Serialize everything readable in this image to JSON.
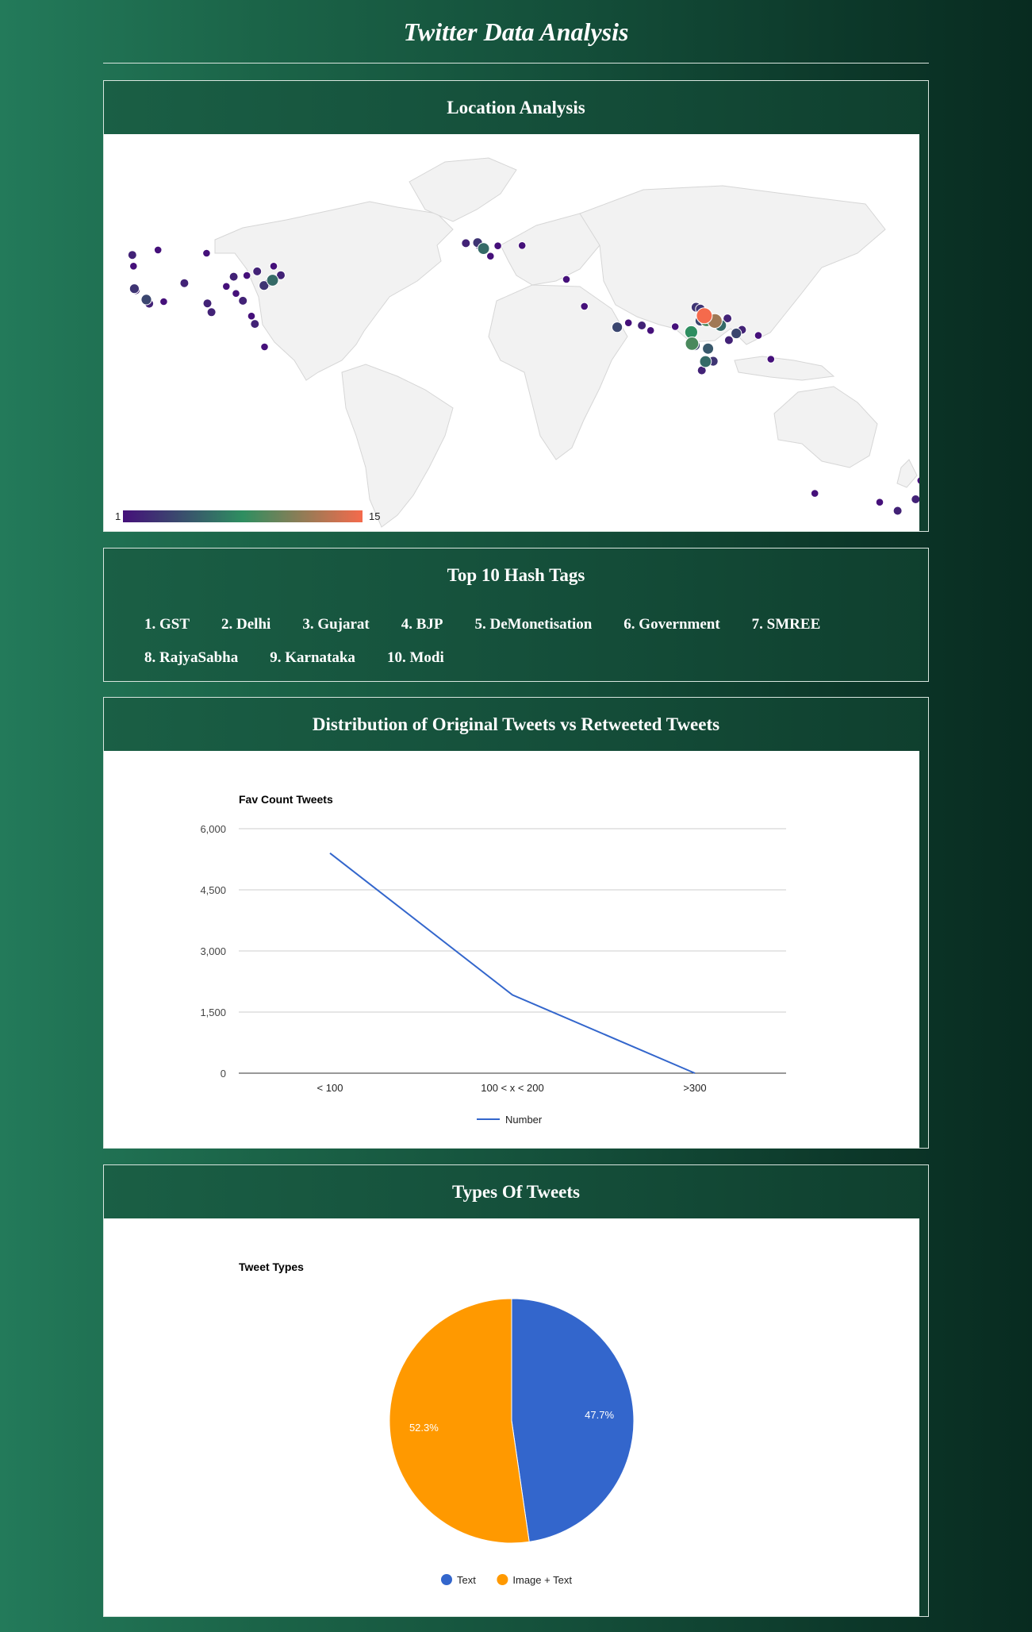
{
  "header": {
    "title": "Twitter Data Analysis"
  },
  "location": {
    "title": "Location Analysis",
    "colorbar": {
      "min_label": "1",
      "max_label": "15",
      "colors": [
        "#45107a",
        "#2e8e60",
        "#f56a4c"
      ]
    },
    "land_color": "#f2f2f2",
    "points": [
      {
        "lon": -149.9,
        "lat": 61.2,
        "count": 1
      },
      {
        "lon": -114.1,
        "lat": 51.0,
        "count": 1
      },
      {
        "lon": -123.1,
        "lat": 49.3,
        "count": 2
      },
      {
        "lon": -122.7,
        "lat": 45.5,
        "count": 1
      },
      {
        "lon": -97.1,
        "lat": 49.9,
        "count": 1
      },
      {
        "lon": -122.4,
        "lat": 37.8,
        "count": 3
      },
      {
        "lon": -121.9,
        "lat": 37.3,
        "count": 2
      },
      {
        "lon": -118.2,
        "lat": 34.1,
        "count": 4
      },
      {
        "lon": -117.2,
        "lat": 32.7,
        "count": 2
      },
      {
        "lon": -112.1,
        "lat": 33.4,
        "count": 1
      },
      {
        "lon": -104.9,
        "lat": 39.7,
        "count": 2
      },
      {
        "lon": -96.8,
        "lat": 32.8,
        "count": 2
      },
      {
        "lon": -95.4,
        "lat": 29.8,
        "count": 2
      },
      {
        "lon": -90.2,
        "lat": 38.6,
        "count": 1
      },
      {
        "lon": -87.6,
        "lat": 41.9,
        "count": 2
      },
      {
        "lon": -86.8,
        "lat": 36.2,
        "count": 1
      },
      {
        "lon": -84.4,
        "lat": 33.7,
        "count": 2
      },
      {
        "lon": -83.0,
        "lat": 42.3,
        "count": 1
      },
      {
        "lon": -81.4,
        "lat": 28.5,
        "count": 1
      },
      {
        "lon": -80.2,
        "lat": 25.8,
        "count": 2
      },
      {
        "lon": -79.4,
        "lat": 43.7,
        "count": 2
      },
      {
        "lon": -77.0,
        "lat": 38.9,
        "count": 3
      },
      {
        "lon": -75.2,
        "lat": 40.0,
        "count": 2
      },
      {
        "lon": -74.0,
        "lat": 40.7,
        "count": 6
      },
      {
        "lon": -71.1,
        "lat": 42.4,
        "count": 2
      },
      {
        "lon": -73.6,
        "lat": 45.5,
        "count": 1
      },
      {
        "lon": -76.8,
        "lat": 18.0,
        "count": 1
      },
      {
        "lon": -157.9,
        "lat": 21.3,
        "count": 2
      },
      {
        "lon": -6.3,
        "lat": 53.3,
        "count": 2
      },
      {
        "lon": -2.2,
        "lat": 53.5,
        "count": 3
      },
      {
        "lon": -0.1,
        "lat": 51.5,
        "count": 6
      },
      {
        "lon": -1.9,
        "lat": 52.5,
        "count": 1
      },
      {
        "lon": 4.9,
        "lat": 52.4,
        "count": 1
      },
      {
        "lon": 13.4,
        "lat": 52.5,
        "count": 1
      },
      {
        "lon": 2.3,
        "lat": 48.9,
        "count": 1
      },
      {
        "lon": 28.9,
        "lat": 41.0,
        "count": 1
      },
      {
        "lon": 35.2,
        "lat": 31.8,
        "count": 1
      },
      {
        "lon": 46.7,
        "lat": 24.7,
        "count": 4
      },
      {
        "lon": 50.6,
        "lat": 26.2,
        "count": 1
      },
      {
        "lon": 55.3,
        "lat": 25.3,
        "count": 2
      },
      {
        "lon": 58.4,
        "lat": 23.6,
        "count": 1
      },
      {
        "lon": 67.0,
        "lat": 24.9,
        "count": 1
      },
      {
        "lon": 74.3,
        "lat": 31.5,
        "count": 3
      },
      {
        "lon": 75.8,
        "lat": 30.9,
        "count": 3
      },
      {
        "lon": 77.2,
        "lat": 28.6,
        "count": 15
      },
      {
        "lon": 78.0,
        "lat": 27.2,
        "count": 9
      },
      {
        "lon": 80.9,
        "lat": 26.8,
        "count": 12
      },
      {
        "lon": 82.9,
        "lat": 25.3,
        "count": 6
      },
      {
        "lon": 75.8,
        "lat": 26.9,
        "count": 4
      },
      {
        "lon": 72.6,
        "lat": 23.0,
        "count": 8
      },
      {
        "lon": 72.9,
        "lat": 19.1,
        "count": 9
      },
      {
        "lon": 73.9,
        "lat": 18.5,
        "count": 4
      },
      {
        "lon": 78.5,
        "lat": 17.4,
        "count": 5
      },
      {
        "lon": 77.6,
        "lat": 13.0,
        "count": 6
      },
      {
        "lon": 80.3,
        "lat": 13.1,
        "count": 3
      },
      {
        "lon": 76.3,
        "lat": 10.0,
        "count": 2
      },
      {
        "lon": 85.8,
        "lat": 20.3,
        "count": 2
      },
      {
        "lon": 88.4,
        "lat": 22.6,
        "count": 4
      },
      {
        "lon": 85.3,
        "lat": 27.7,
        "count": 2
      },
      {
        "lon": 90.4,
        "lat": 23.8,
        "count": 2
      },
      {
        "lon": 96.1,
        "lat": 21.9,
        "count": 1
      },
      {
        "lon": 100.5,
        "lat": 13.8,
        "count": 1
      },
      {
        "lon": 115.9,
        "lat": -31.9,
        "count": 1
      },
      {
        "lon": 138.6,
        "lat": -34.9,
        "count": 1
      },
      {
        "lon": 144.9,
        "lat": -37.8,
        "count": 2
      },
      {
        "lon": 151.2,
        "lat": -33.9,
        "count": 2
      },
      {
        "lon": 153.0,
        "lat": -27.5,
        "count": 1
      },
      {
        "lon": 174.8,
        "lat": -36.9,
        "count": 3
      }
    ]
  },
  "hashtags": {
    "title": "Top 10 Hash Tags",
    "rows": [
      [
        "1. GST",
        "2. Delhi",
        "3. Gujarat",
        "4. BJP",
        "5. DeMonetisation",
        "6. Government",
        "7. SMREE"
      ],
      [
        "8. RajyaSabha",
        "9. Karnataka",
        "10. Modi"
      ]
    ]
  },
  "distribution": {
    "title": "Distribution of Original Tweets vs Retweeted Tweets",
    "chart_data": {
      "type": "line",
      "title": "Fav Count Tweets",
      "categories": [
        "< 100",
        "100 < x < 200",
        ">300"
      ],
      "series": [
        {
          "name": "Number",
          "values": [
            5400,
            1920,
            0
          ],
          "color": "#3366cc"
        }
      ],
      "ylim": [
        0,
        6000
      ],
      "yticks": [
        0,
        1500,
        3000,
        4500,
        6000
      ],
      "ytick_labels": [
        "0",
        "1,500",
        "3,000",
        "4,500",
        "6,000"
      ],
      "grid": true,
      "legend": "bottom"
    }
  },
  "types": {
    "title": "Types Of Tweets",
    "chart_data": {
      "type": "pie",
      "title": "Tweet Types",
      "slices": [
        {
          "name": "Text",
          "value": 47.7,
          "label": "47.7%",
          "color": "#3366cc"
        },
        {
          "name": "Image + Text",
          "value": 52.3,
          "label": "52.3%",
          "color": "#ff9900"
        }
      ],
      "legend": "bottom"
    }
  }
}
